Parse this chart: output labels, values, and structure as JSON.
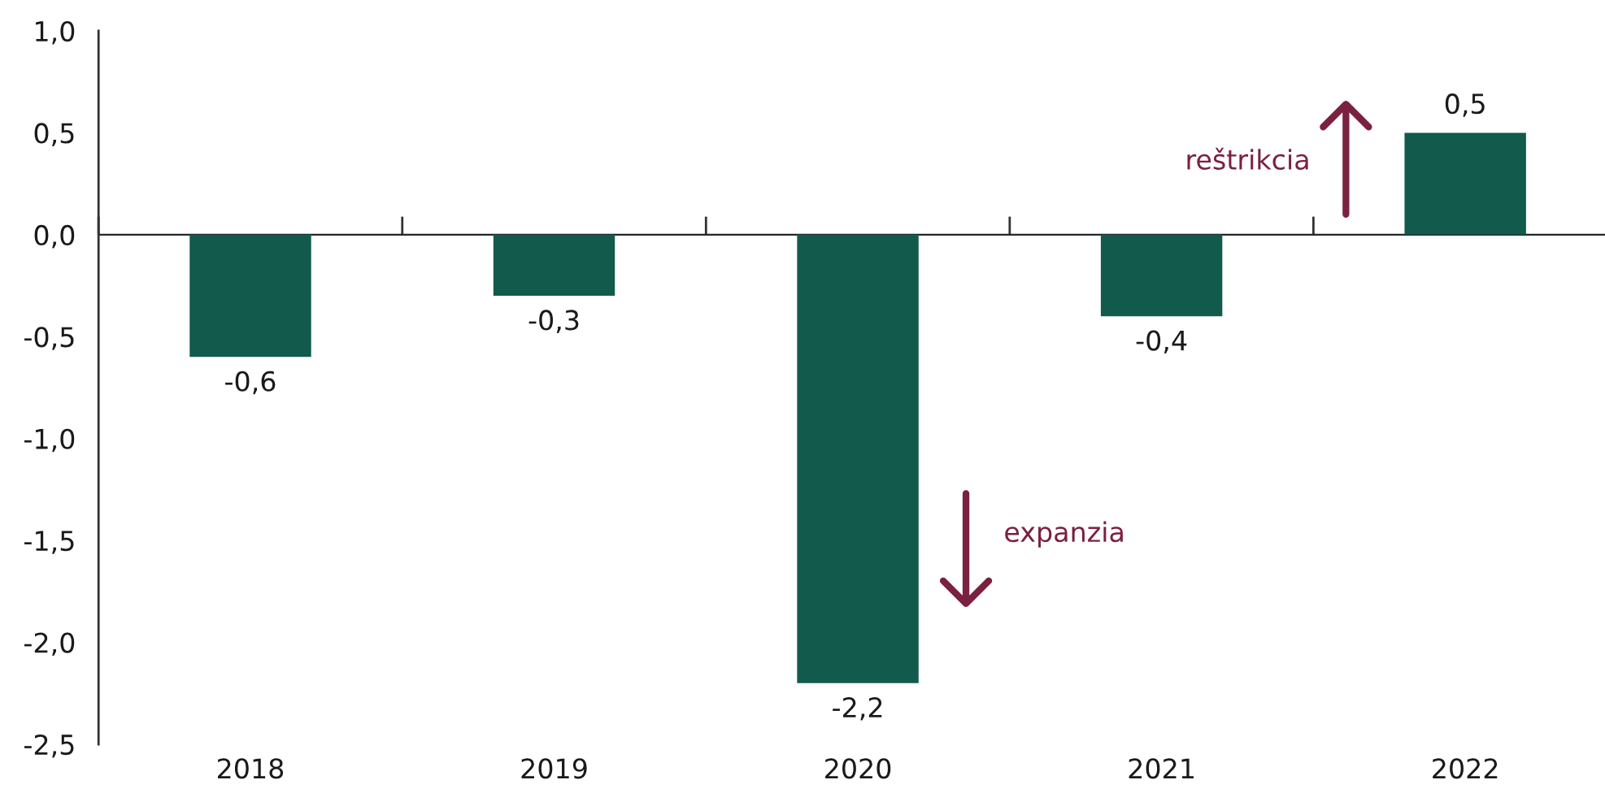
{
  "chart_data": {
    "type": "bar",
    "categories": [
      "2018",
      "2019",
      "2020",
      "2021",
      "2022"
    ],
    "values": [
      -0.6,
      -0.3,
      -2.2,
      -0.4,
      0.5
    ],
    "value_labels": [
      "-0,6",
      "-0,3",
      "-2,2",
      "-0,4",
      "0,5"
    ],
    "color": "#115a4c",
    "ylim": [
      -2.5,
      1.0
    ],
    "yticks": [
      {
        "value": -2.5,
        "label": "-2,5"
      },
      {
        "value": -2.0,
        "label": "-2,0"
      },
      {
        "value": -1.5,
        "label": "-1,5"
      },
      {
        "value": -1.0,
        "label": "-1,0"
      },
      {
        "value": -0.5,
        "label": "-0,5"
      },
      {
        "value": 0.0,
        "label": "0,0"
      },
      {
        "value": 0.5,
        "label": "0,5"
      },
      {
        "value": 1.0,
        "label": "1,0"
      }
    ],
    "annotations": [
      "reštrikcia",
      "expanzia"
    ]
  }
}
